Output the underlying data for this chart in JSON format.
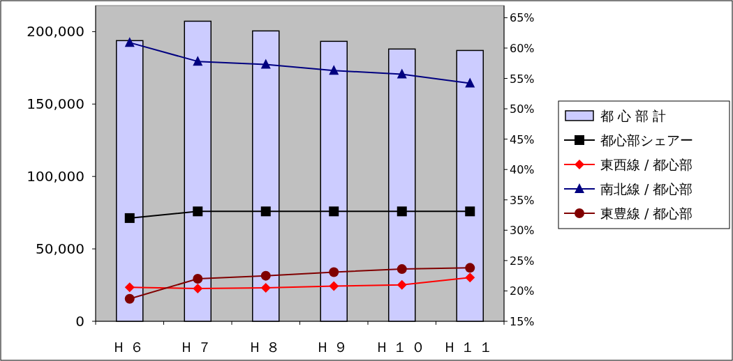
{
  "chart_data": {
    "type": "bar",
    "categories": [
      "Ｈ６",
      "Ｈ７",
      "Ｈ８",
      "Ｈ９",
      "Ｈ１０",
      "Ｈ１１"
    ],
    "ylim": [
      0,
      218000
    ],
    "yticks": [
      {
        "value": 0,
        "label": "0"
      },
      {
        "value": 50000,
        "label": "50,000"
      },
      {
        "value": 100000,
        "label": "100,000"
      },
      {
        "value": 150000,
        "label": "150,000"
      },
      {
        "value": 200000,
        "label": "200,000"
      }
    ],
    "y2lim": [
      15,
      67
    ],
    "y2ticks": [
      {
        "value": 15,
        "label": "15%"
      },
      {
        "value": 20,
        "label": "20%"
      },
      {
        "value": 25,
        "label": "25%"
      },
      {
        "value": 30,
        "label": "30%"
      },
      {
        "value": 35,
        "label": "35%"
      },
      {
        "value": 40,
        "label": "40%"
      },
      {
        "value": 45,
        "label": "45%"
      },
      {
        "value": 50,
        "label": "50%"
      },
      {
        "value": 55,
        "label": "55%"
      },
      {
        "value": 60,
        "label": "60%"
      },
      {
        "value": 65,
        "label": "65%"
      }
    ],
    "legend": "right",
    "grid": false,
    "series": [
      {
        "name": "都 心 部 計",
        "color": "#ccccff",
        "values": [
          193800,
          207200,
          200500,
          193300,
          188000,
          187000
        ]
      },
      {
        "name": "都心部シェアー",
        "type": "line",
        "axis": "y2",
        "color": "#000000",
        "marker": "square",
        "values": [
          32.0,
          33.1,
          33.1,
          33.1,
          33.1,
          33.1
        ]
      },
      {
        "name": "東西線 / 都心部",
        "type": "line",
        "axis": "y2",
        "color": "#ff0000",
        "marker": "diamond",
        "values": [
          20.6,
          20.4,
          20.5,
          20.8,
          21.0,
          22.2
        ]
      },
      {
        "name": "南北線 / 都心部",
        "type": "line",
        "axis": "y2",
        "color": "#000080",
        "marker": "triangle",
        "values": [
          60.9,
          57.8,
          57.3,
          56.3,
          55.7,
          54.2
        ]
      },
      {
        "name": "東豊線 / 都心部",
        "type": "line",
        "axis": "y2",
        "color": "#800000",
        "marker": "circle",
        "values": [
          18.7,
          22.0,
          22.5,
          23.1,
          23.6,
          23.8
        ]
      }
    ]
  }
}
